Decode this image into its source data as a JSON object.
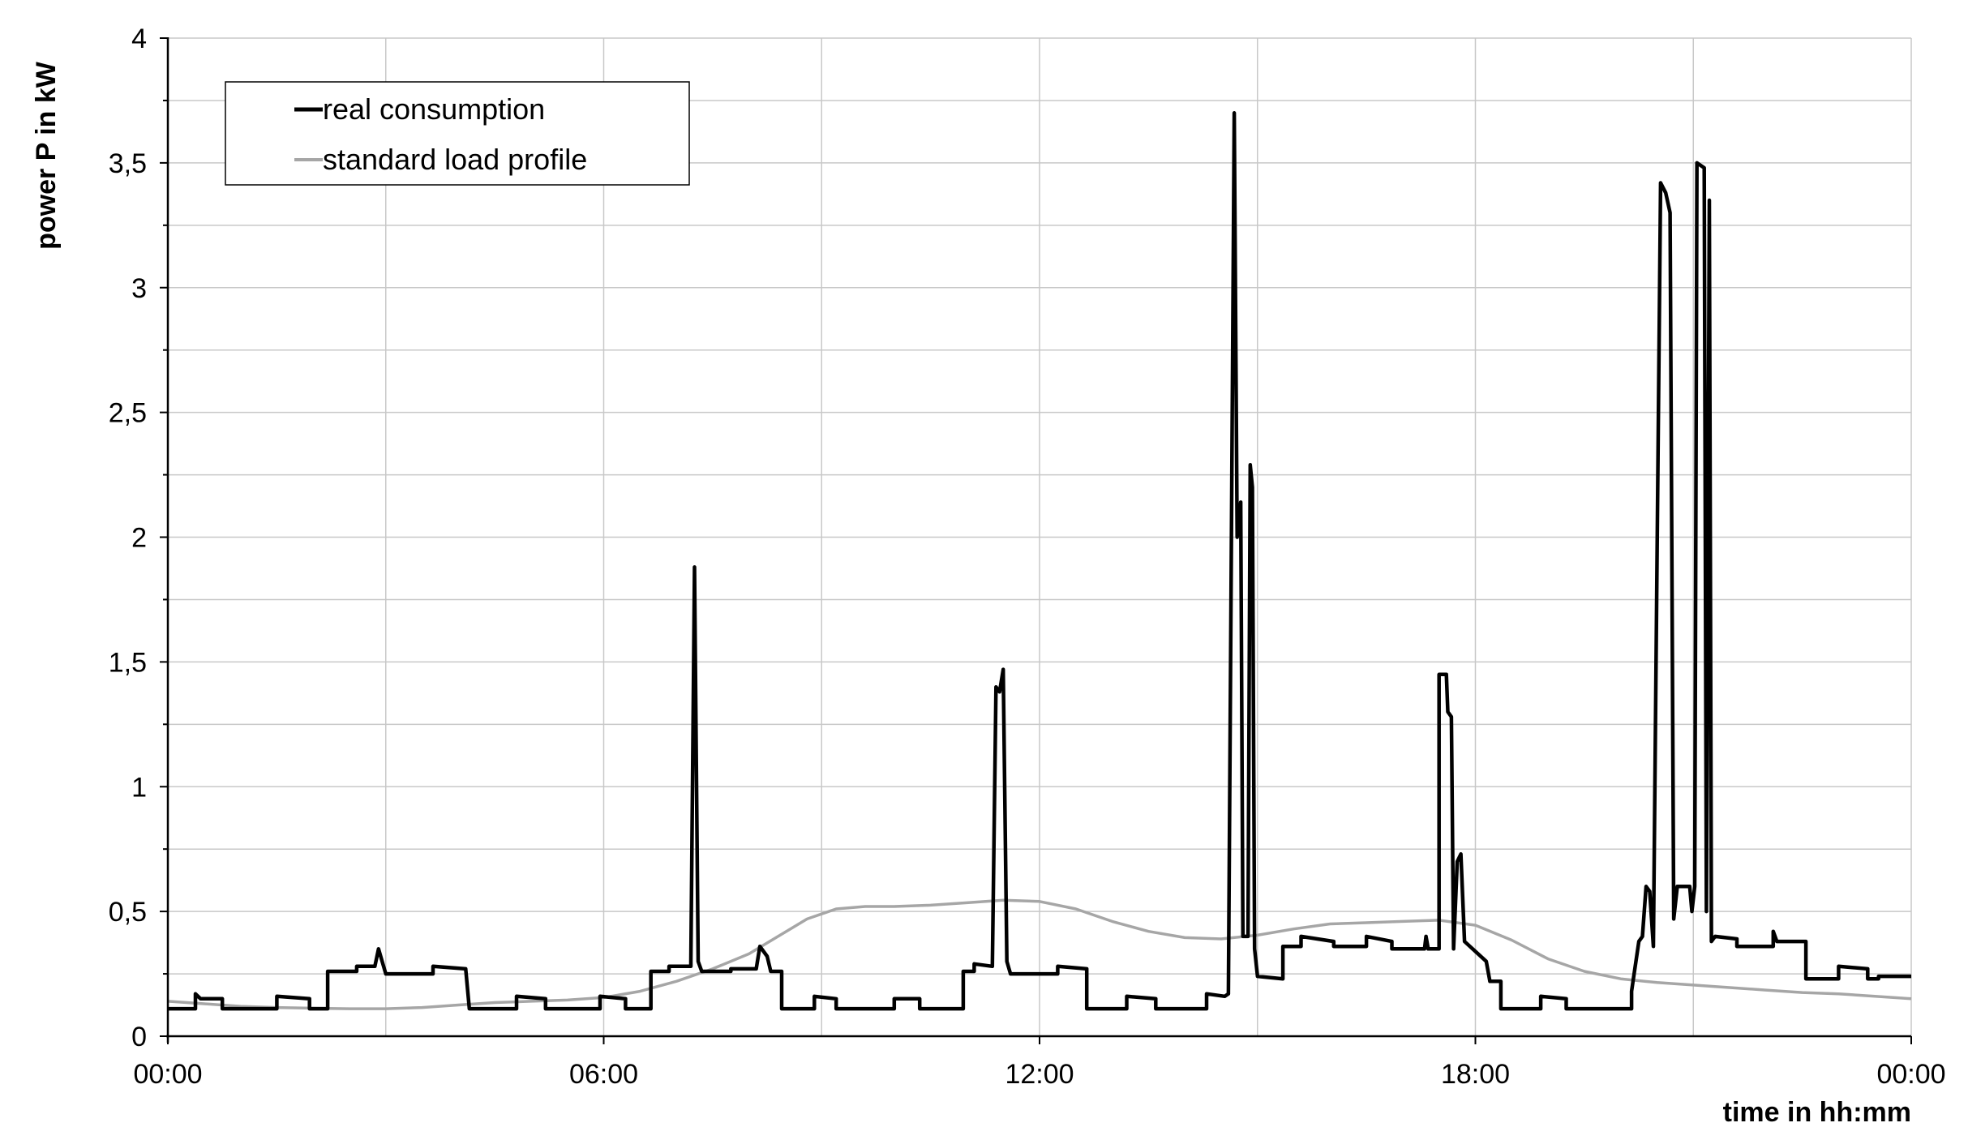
{
  "chart_data": {
    "type": "line",
    "xlabel": "time in hh:mm",
    "ylabel": "power P in kW",
    "x_unit": "hours",
    "xlim": [
      0,
      24
    ],
    "ylim": [
      0,
      4
    ],
    "x_ticks": [
      0,
      6,
      12,
      18,
      24
    ],
    "x_tick_labels": [
      "00:00",
      "06:00",
      "12:00",
      "18:00",
      "00:00"
    ],
    "y_ticks": [
      0,
      0.5,
      1,
      1.5,
      2,
      2.5,
      3,
      3.5,
      4
    ],
    "y_tick_labels": [
      "0",
      "0,5",
      "1",
      "1,5",
      "2",
      "2,5",
      "3",
      "3,5",
      "4"
    ],
    "grid": true,
    "legend": "top-left",
    "colors": {
      "real": "#000000",
      "slp": "#a6a6a6",
      "grid": "#c8c8c8"
    },
    "series": [
      {
        "name": "real consumption",
        "points": [
          [
            0,
            0.11
          ],
          [
            0.38,
            0.11
          ],
          [
            0.38,
            0.17
          ],
          [
            0.45,
            0.15
          ],
          [
            0.75,
            0.15
          ],
          [
            0.75,
            0.11
          ],
          [
            1.5,
            0.11
          ],
          [
            1.5,
            0.16
          ],
          [
            1.95,
            0.15
          ],
          [
            1.95,
            0.11
          ],
          [
            2.2,
            0.11
          ],
          [
            2.2,
            0.26
          ],
          [
            2.6,
            0.26
          ],
          [
            2.6,
            0.28
          ],
          [
            2.85,
            0.28
          ],
          [
            2.9,
            0.35
          ],
          [
            2.95,
            0.3
          ],
          [
            3.0,
            0.25
          ],
          [
            3.65,
            0.25
          ],
          [
            3.65,
            0.28
          ],
          [
            4.1,
            0.27
          ],
          [
            4.15,
            0.11
          ],
          [
            4.8,
            0.11
          ],
          [
            4.8,
            0.16
          ],
          [
            5.2,
            0.15
          ],
          [
            5.2,
            0.11
          ],
          [
            5.95,
            0.11
          ],
          [
            5.95,
            0.16
          ],
          [
            6.3,
            0.15
          ],
          [
            6.3,
            0.11
          ],
          [
            6.65,
            0.11
          ],
          [
            6.65,
            0.26
          ],
          [
            6.9,
            0.26
          ],
          [
            6.9,
            0.28
          ],
          [
            7.2,
            0.28
          ],
          [
            7.2,
            0.3
          ],
          [
            7.25,
            1.88
          ],
          [
            7.3,
            0.3
          ],
          [
            7.35,
            0.26
          ],
          [
            7.75,
            0.26
          ],
          [
            7.75,
            0.27
          ],
          [
            8.1,
            0.27
          ],
          [
            8.15,
            0.36
          ],
          [
            8.25,
            0.32
          ],
          [
            8.3,
            0.26
          ],
          [
            8.45,
            0.26
          ],
          [
            8.45,
            0.11
          ],
          [
            8.9,
            0.11
          ],
          [
            8.9,
            0.16
          ],
          [
            9.2,
            0.15
          ],
          [
            9.2,
            0.11
          ],
          [
            10.0,
            0.11
          ],
          [
            10.0,
            0.15
          ],
          [
            10.35,
            0.15
          ],
          [
            10.35,
            0.11
          ],
          [
            10.95,
            0.11
          ],
          [
            10.95,
            0.26
          ],
          [
            11.1,
            0.26
          ],
          [
            11.1,
            0.29
          ],
          [
            11.35,
            0.28
          ],
          [
            11.4,
            1.4
          ],
          [
            11.45,
            1.38
          ],
          [
            11.5,
            1.47
          ],
          [
            11.55,
            0.3
          ],
          [
            11.6,
            0.25
          ],
          [
            12.25,
            0.25
          ],
          [
            12.25,
            0.28
          ],
          [
            12.65,
            0.27
          ],
          [
            12.65,
            0.11
          ],
          [
            13.2,
            0.11
          ],
          [
            13.2,
            0.16
          ],
          [
            13.6,
            0.15
          ],
          [
            13.6,
            0.11
          ],
          [
            14.3,
            0.11
          ],
          [
            14.3,
            0.17
          ],
          [
            14.55,
            0.16
          ],
          [
            14.6,
            0.17
          ],
          [
            14.68,
            3.7
          ],
          [
            14.72,
            2.0
          ],
          [
            14.77,
            2.14
          ],
          [
            14.8,
            0.4
          ],
          [
            14.87,
            0.4
          ],
          [
            14.9,
            2.29
          ],
          [
            14.93,
            2.2
          ],
          [
            14.96,
            0.35
          ],
          [
            15.0,
            0.24
          ],
          [
            15.35,
            0.23
          ],
          [
            15.35,
            0.36
          ],
          [
            15.6,
            0.36
          ],
          [
            15.6,
            0.4
          ],
          [
            16.05,
            0.38
          ],
          [
            16.05,
            0.36
          ],
          [
            16.5,
            0.36
          ],
          [
            16.5,
            0.4
          ],
          [
            16.85,
            0.38
          ],
          [
            16.85,
            0.35
          ],
          [
            17.3,
            0.35
          ],
          [
            17.32,
            0.4
          ],
          [
            17.35,
            0.35
          ],
          [
            17.5,
            0.35
          ],
          [
            17.5,
            1.45
          ],
          [
            17.6,
            1.45
          ],
          [
            17.62,
            1.3
          ],
          [
            17.67,
            1.28
          ],
          [
            17.7,
            0.35
          ],
          [
            17.75,
            0.7
          ],
          [
            17.8,
            0.73
          ],
          [
            17.85,
            0.38
          ],
          [
            18.15,
            0.3
          ],
          [
            18.2,
            0.22
          ],
          [
            18.35,
            0.22
          ],
          [
            18.35,
            0.11
          ],
          [
            18.9,
            0.11
          ],
          [
            18.9,
            0.16
          ],
          [
            19.25,
            0.15
          ],
          [
            19.25,
            0.11
          ],
          [
            20.15,
            0.11
          ],
          [
            20.15,
            0.18
          ],
          [
            20.25,
            0.38
          ],
          [
            20.3,
            0.4
          ],
          [
            20.35,
            0.6
          ],
          [
            20.4,
            0.58
          ],
          [
            20.45,
            0.36
          ],
          [
            20.55,
            3.42
          ],
          [
            20.62,
            3.38
          ],
          [
            20.68,
            3.3
          ],
          [
            20.73,
            0.47
          ],
          [
            20.78,
            0.6
          ],
          [
            20.95,
            0.6
          ],
          [
            20.98,
            0.5
          ],
          [
            21.02,
            0.6
          ],
          [
            21.05,
            3.5
          ],
          [
            21.15,
            3.48
          ],
          [
            21.18,
            0.5
          ],
          [
            21.22,
            3.35
          ],
          [
            21.25,
            0.38
          ],
          [
            21.3,
            0.4
          ],
          [
            21.6,
            0.39
          ],
          [
            21.6,
            0.36
          ],
          [
            22.1,
            0.36
          ],
          [
            22.1,
            0.42
          ],
          [
            22.15,
            0.38
          ],
          [
            22.55,
            0.38
          ],
          [
            22.55,
            0.23
          ],
          [
            23.0,
            0.23
          ],
          [
            23.0,
            0.28
          ],
          [
            23.4,
            0.27
          ],
          [
            23.4,
            0.23
          ],
          [
            23.55,
            0.23
          ],
          [
            23.55,
            0.24
          ],
          [
            24.0,
            0.24
          ]
        ]
      },
      {
        "name": "standard load profile",
        "points": [
          [
            0,
            0.14
          ],
          [
            0.5,
            0.13
          ],
          [
            1,
            0.12
          ],
          [
            1.5,
            0.115
          ],
          [
            2,
            0.112
          ],
          [
            2.5,
            0.11
          ],
          [
            3,
            0.11
          ],
          [
            3.5,
            0.115
          ],
          [
            4,
            0.125
          ],
          [
            4.5,
            0.135
          ],
          [
            5,
            0.14
          ],
          [
            5.5,
            0.145
          ],
          [
            6,
            0.155
          ],
          [
            6.5,
            0.18
          ],
          [
            7,
            0.22
          ],
          [
            7.5,
            0.27
          ],
          [
            8,
            0.33
          ],
          [
            8.4,
            0.4
          ],
          [
            8.8,
            0.47
          ],
          [
            9.2,
            0.51
          ],
          [
            9.6,
            0.52
          ],
          [
            10,
            0.52
          ],
          [
            10.5,
            0.525
          ],
          [
            11,
            0.535
          ],
          [
            11.5,
            0.545
          ],
          [
            12,
            0.54
          ],
          [
            12.5,
            0.51
          ],
          [
            13,
            0.46
          ],
          [
            13.5,
            0.42
          ],
          [
            14,
            0.395
          ],
          [
            14.5,
            0.39
          ],
          [
            15,
            0.405
          ],
          [
            15.5,
            0.43
          ],
          [
            16,
            0.45
          ],
          [
            16.5,
            0.455
          ],
          [
            17,
            0.46
          ],
          [
            17.5,
            0.465
          ],
          [
            18,
            0.445
          ],
          [
            18.5,
            0.385
          ],
          [
            19,
            0.31
          ],
          [
            19.5,
            0.26
          ],
          [
            20,
            0.23
          ],
          [
            20.5,
            0.215
          ],
          [
            21,
            0.205
          ],
          [
            21.5,
            0.195
          ],
          [
            22,
            0.185
          ],
          [
            22.5,
            0.175
          ],
          [
            23,
            0.17
          ],
          [
            23.5,
            0.16
          ],
          [
            24,
            0.15
          ]
        ]
      }
    ]
  }
}
